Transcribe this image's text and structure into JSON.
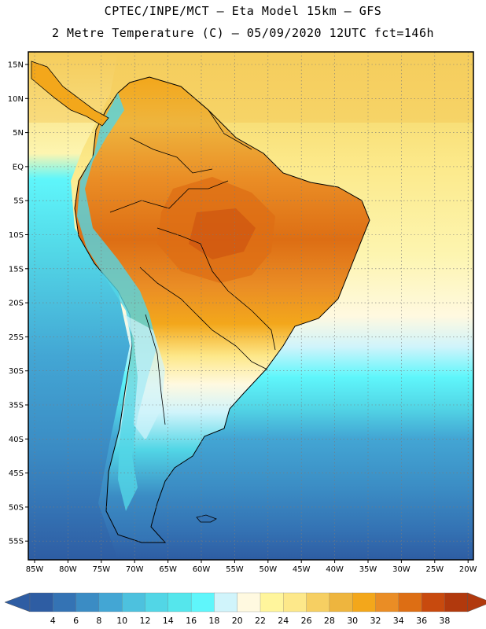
{
  "title_line1": "CPTEC/INPE/MCT —  Eta Model 15km — GFS",
  "title_line2": "2 Metre Temperature (C) — 05/09/2020 12UTC fct=146h",
  "lat_labels": [
    "15N",
    "10N",
    "5N",
    "EQ",
    "5S",
    "10S",
    "15S",
    "20S",
    "25S",
    "30S",
    "35S",
    "40S",
    "45S",
    "50S",
    "55S"
  ],
  "lon_labels": [
    "85W",
    "80W",
    "75W",
    "70W",
    "65W",
    "60W",
    "55W",
    "50W",
    "45W",
    "40W",
    "35W",
    "30W",
    "25W",
    "20W"
  ],
  "colorbar": {
    "values": [
      "4",
      "6",
      "8",
      "10",
      "12",
      "14",
      "16",
      "18",
      "20",
      "22",
      "24",
      "26",
      "28",
      "30",
      "32",
      "34",
      "36",
      "38"
    ],
    "colors": [
      "#2e5da3",
      "#3473b4",
      "#3b8cc4",
      "#43a6d4",
      "#4dc1de",
      "#52d6e6",
      "#55e6ec",
      "#5ff6fb",
      "#d0f4fb",
      "#fff9e0",
      "#fff59c",
      "#fde88a",
      "#f6cf62",
      "#eeb53e",
      "#f3a71b",
      "#ea8d25",
      "#dd6e14",
      "#c84a0e",
      "#b1390d"
    ],
    "low_arrow_color": "#2e5da3",
    "high_arrow_color": "#b1390d"
  }
}
